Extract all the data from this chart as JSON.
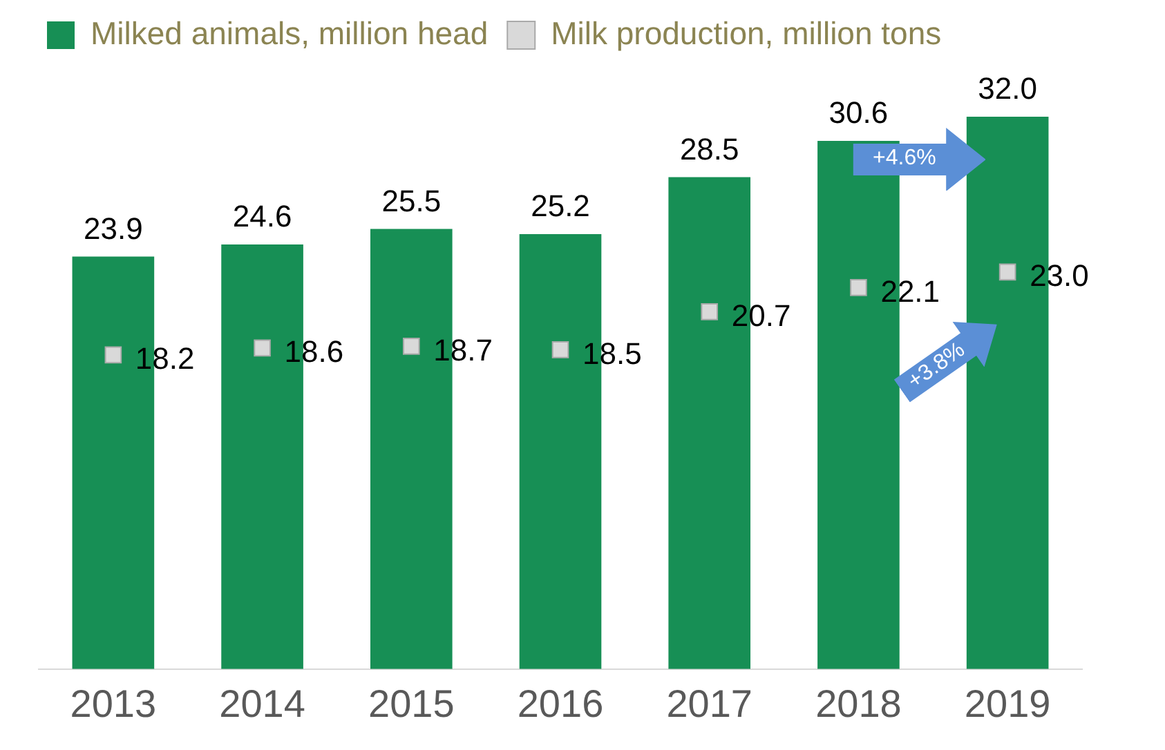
{
  "chart_data": {
    "type": "bar",
    "categories": [
      "2013",
      "2014",
      "2015",
      "2016",
      "2017",
      "2018",
      "2019"
    ],
    "series": [
      {
        "name": "Milked animals, million head",
        "type": "bar",
        "color": "#178f55",
        "values": [
          23.9,
          24.6,
          25.5,
          25.2,
          28.5,
          30.6,
          32.0
        ],
        "value_labels": [
          "23.9",
          "24.6",
          "25.5",
          "25.2",
          "28.5",
          "30.6",
          "32.0"
        ]
      },
      {
        "name": "Milk production, million tons",
        "type": "scatter",
        "color": "#d9d9d9",
        "values": [
          18.2,
          18.6,
          18.7,
          18.5,
          20.7,
          22.1,
          23.0
        ],
        "value_labels": [
          "18.2",
          "18.6",
          "18.7",
          "18.5",
          "20.7",
          "22.1",
          "23.0"
        ]
      }
    ],
    "tick_labels": "x",
    "grid": false,
    "legend": "top left",
    "marker": "square",
    "annotations": [
      "+4.6%",
      "+3.8%"
    ]
  }
}
